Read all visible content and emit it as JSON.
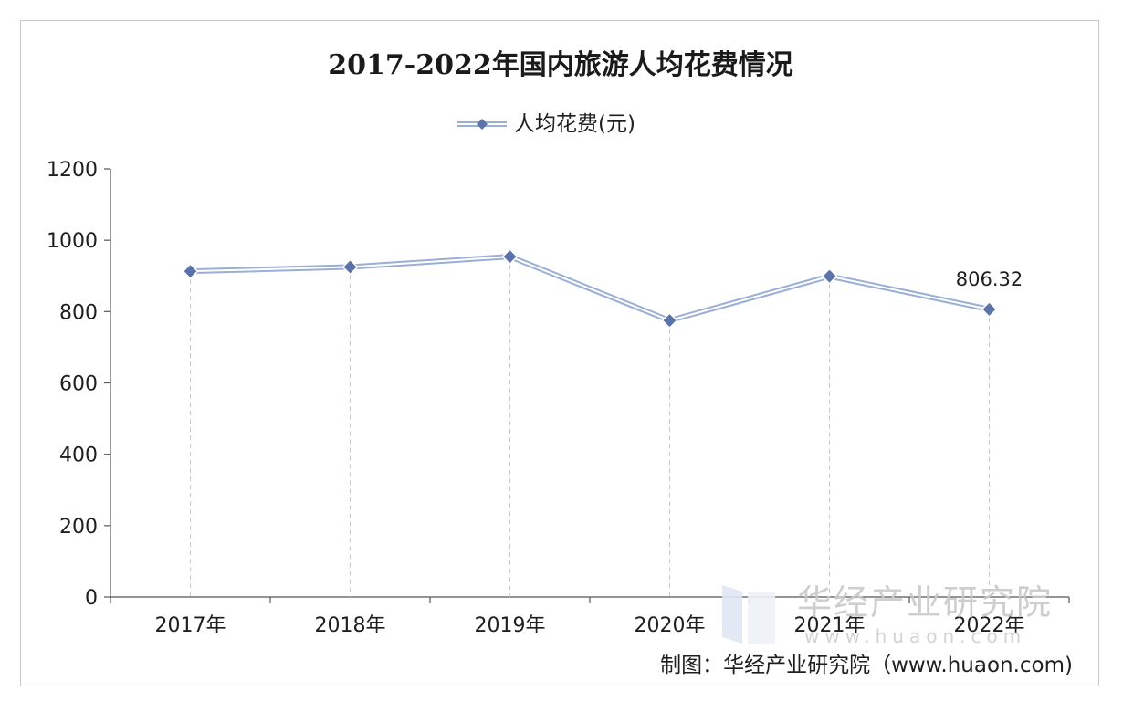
{
  "chart_data": {
    "type": "line",
    "title": "2017-2022年国内旅游人均花费情况",
    "categories": [
      "2017年",
      "2018年",
      "2019年",
      "2020年",
      "2021年",
      "2022年"
    ],
    "series": [
      {
        "name": "人均花费(元)",
        "values": [
          913,
          925,
          954,
          775,
          899,
          806.32
        ]
      }
    ],
    "data_labels": [
      {
        "index": 5,
        "text": "806.32"
      }
    ],
    "ylim": [
      0,
      1200
    ],
    "yticks": [
      "0",
      "200",
      "400",
      "600",
      "800",
      "1000",
      "1200"
    ],
    "xlabel": "",
    "ylabel": "",
    "legend": "top-center",
    "grid": "vertical dashed drop lines",
    "colors": {
      "line": "#9aaed6",
      "marker": "#5b73a8",
      "marker_edge": "#ffffff",
      "dropline": "#c8c8c8"
    }
  },
  "source": "制图：华经产业研究院（www.huaon.com)",
  "watermark": {
    "name": "华经产业研究院",
    "url": "www.huaon.com"
  }
}
